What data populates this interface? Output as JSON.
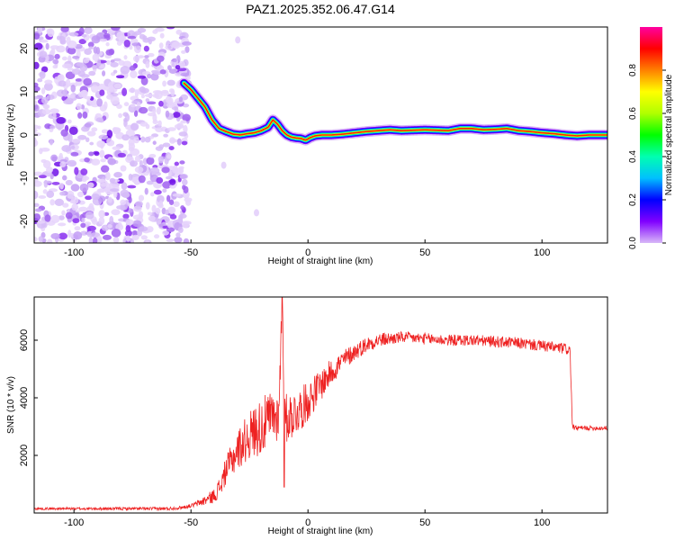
{
  "chart_data": [
    {
      "type": "heatmap",
      "title": "PAZ1.2025.352.06.47.G14",
      "xlabel": "Height of straight line (km)",
      "ylabel": "Frequency (Hz)",
      "xlim": [
        -117,
        128
      ],
      "ylim": [
        -25,
        25
      ],
      "x_ticks": [
        -100,
        -50,
        0,
        50,
        100
      ],
      "y_ticks": [
        -20,
        -10,
        0,
        10,
        20
      ],
      "colorbar": {
        "label": "Normalized spectral amplitude",
        "range": [
          0,
          1
        ],
        "ticks": [
          "0.0",
          "0.2",
          "0.4",
          "0.6",
          "0.8"
        ],
        "colors": [
          "#d8b8f8",
          "#8000ff",
          "#0000ff",
          "#00c0ff",
          "#00ffb0",
          "#00ff00",
          "#b0ff00",
          "#ffff00",
          "#ff8000",
          "#ff0000",
          "#ff00a0"
        ]
      },
      "noise_region_x": [
        -117,
        -51
      ],
      "ridge": {
        "x": [
          -53,
          -50,
          -47,
          -44,
          -41,
          -38,
          -35,
          -32,
          -29,
          -26,
          -23,
          -20,
          -17,
          -15,
          -13,
          -11,
          -9,
          -7,
          -5,
          -3,
          -1,
          1,
          3,
          6,
          10,
          15,
          20,
          25,
          30,
          35,
          40,
          50,
          60,
          65,
          70,
          75,
          80,
          85,
          90,
          95,
          100,
          105,
          110,
          115,
          120,
          128
        ],
        "y": [
          12,
          10.5,
          8.5,
          6.5,
          3.5,
          1.5,
          0.8,
          0.2,
          0,
          0.3,
          0.5,
          1,
          1.8,
          3.5,
          2.5,
          1,
          0,
          -0.5,
          -0.7,
          -0.8,
          -1.2,
          -0.6,
          -0.2,
          0,
          0,
          0.2,
          0.5,
          0.8,
          1,
          1.2,
          1,
          1.2,
          1,
          1.5,
          1.5,
          1.2,
          1.3,
          1.5,
          1,
          0.8,
          0.5,
          0.3,
          0,
          -0.2,
          0,
          0
        ]
      }
    },
    {
      "type": "line",
      "xlabel": "Height of straight line (km)",
      "ylabel": "SNR (10 * v/v)",
      "xlim": [
        -117,
        128
      ],
      "ylim": [
        0,
        7500
      ],
      "x_ticks": [
        -100,
        -50,
        0,
        50,
        100
      ],
      "y_ticks": [
        2000,
        4000,
        6000
      ],
      "color": "#ee2222",
      "series": [
        {
          "name": "SNR",
          "x": [
            -117,
            -90,
            -60,
            -55,
            -50,
            -45,
            -40,
            -37,
            -35,
            -32,
            -30,
            -27,
            -25,
            -22,
            -20,
            -17,
            -15,
            -13,
            -12,
            -11,
            -10,
            -9,
            -7,
            -5,
            -2,
            0,
            5,
            10,
            15,
            20,
            25,
            30,
            35,
            40,
            50,
            60,
            70,
            80,
            90,
            100,
            105,
            110,
            112,
            113,
            114,
            120,
            128
          ],
          "y": [
            150,
            150,
            150,
            180,
            250,
            400,
            600,
            1000,
            1500,
            1900,
            2200,
            2500,
            2700,
            2900,
            3000,
            3200,
            3400,
            3300,
            4500,
            7500,
            3200,
            3300,
            3400,
            3500,
            3700,
            3900,
            4400,
            4900,
            5300,
            5600,
            5850,
            6000,
            6050,
            6100,
            6050,
            6000,
            6000,
            5950,
            5900,
            5800,
            5750,
            5700,
            5650,
            3000,
            2950,
            2950,
            2950
          ]
        }
      ],
      "noise_amplitude": {
        "x": [
          -117,
          -50,
          -40,
          -30,
          -20,
          -10,
          0,
          10,
          20,
          40,
          80,
          112,
          113,
          128
        ],
        "amp": [
          40,
          60,
          250,
          700,
          1000,
          900,
          700,
          450,
          300,
          200,
          200,
          200,
          80,
          80
        ]
      }
    }
  ]
}
